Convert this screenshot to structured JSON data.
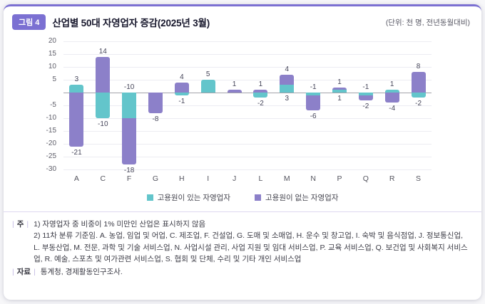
{
  "header": {
    "badge": "그림 4",
    "title": "산업별 50대 자영업자 증감(2025년 3월)",
    "unit": "(단위: 천 명, 전년동월대비)"
  },
  "chart_data": {
    "type": "bar",
    "subtype": "stacked-bar-positive-negative",
    "title": "산업별 50대 자영업자 증감(2025년 3월)",
    "unit_label": "(단위: 천 명, 전년동월대비)",
    "categories": [
      "A",
      "C",
      "F",
      "G",
      "H",
      "I",
      "J",
      "L",
      "M",
      "N",
      "P",
      "Q",
      "R",
      "S"
    ],
    "series": [
      {
        "name": "고용원이 있는 자영업자",
        "color": "#63c5cb",
        "values": [
          3,
          -10,
          -10,
          0,
          -1,
          5,
          0,
          -2,
          3,
          -1,
          1,
          -1,
          1,
          -2
        ]
      },
      {
        "name": "고용원이 없는 자영업자",
        "color": "#8c80c9",
        "values": [
          -21,
          14,
          -18,
          -8,
          4,
          0,
          1,
          1,
          4,
          -6,
          1,
          -2,
          -4,
          8
        ]
      }
    ],
    "ylim": [
      -30,
      20
    ],
    "yticks": [
      20,
      15,
      10,
      5,
      -5,
      -10,
      -15,
      -20,
      -25,
      -30
    ],
    "grid": true,
    "legend_position": "bottom"
  },
  "notes": {
    "label": "주",
    "items": [
      "1) 자영업자 중 비중이 1% 미만인 산업은 표시하지 않음",
      "2) 11차 분류 기준임. A. 농업, 임업 및 어업, C. 제조업, F. 건설업, G. 도매 및 소매업, H. 운수 및 창고업, I. 숙박 및 음식점업, J. 정보통신업, L. 부동산업, M. 전문, 과학 및 기술 서비스업, N. 사업시설 관리, 사업 지원 및 임대 서비스업, P. 교육 서비스업, Q. 보건업 및 사회복지 서비스업, R. 예술, 스포츠 및 여가관련 서비스업, S. 협회 및 단체, 수리 및 기타 개인 서비스업"
    ],
    "source_label": "자료",
    "source": "통계청, 경제활동인구조사."
  }
}
